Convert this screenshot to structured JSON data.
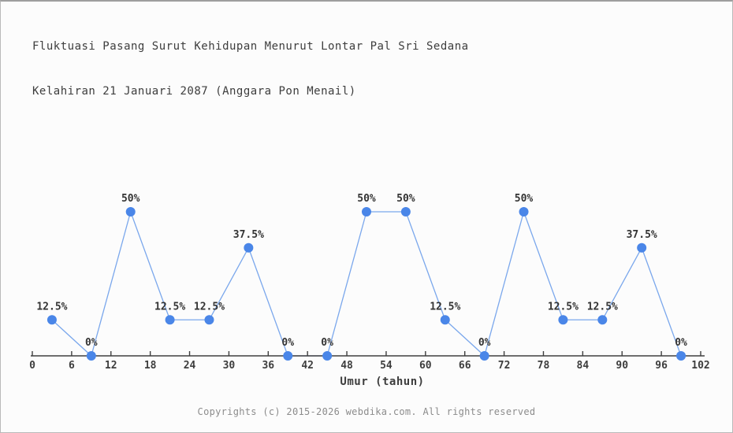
{
  "window": {
    "background": "#fcfcfc",
    "border_color": "#b0b0b0"
  },
  "title": {
    "line1": "Fluktuasi Pasang Surut Kehidupan Menurut Lontar Pal Sri Sedana",
    "line2": "Kelahiran 21 Januari 2087 (Anggara Pon Menail)"
  },
  "footer": {
    "text": "Copyrights (c) 2015-2026 webdika.com. All rights reserved"
  },
  "chart_data": {
    "type": "line",
    "title": "Fluktuasi Pasang Surut Kehidupan Menurut Lontar Pal Sri Sedana Kelahiran 21 Januari 2087 (Anggara Pon Menail)",
    "xlabel": "Umur (tahun)",
    "ylabel": "",
    "x": [
      3,
      9,
      15,
      21,
      27,
      33,
      39,
      45,
      51,
      57,
      63,
      69,
      75,
      81,
      87,
      93,
      99
    ],
    "values": [
      12.5,
      0,
      50,
      12.5,
      12.5,
      37.5,
      0,
      0,
      50,
      50,
      12.5,
      0,
      50,
      12.5,
      12.5,
      37.5,
      0
    ],
    "point_labels": [
      "12.5%",
      "0%",
      "50%",
      "12.5%",
      "12.5%",
      "37.5%",
      "0%",
      "0%",
      "50%",
      "50%",
      "12.5%",
      "0%",
      "50%",
      "12.5%",
      "12.5%",
      "37.5%",
      "0%"
    ],
    "x_ticks": [
      0,
      6,
      12,
      18,
      24,
      30,
      36,
      42,
      48,
      54,
      60,
      66,
      72,
      78,
      84,
      90,
      96,
      102
    ],
    "xlim": [
      0,
      102
    ],
    "ylim": [
      0,
      100
    ],
    "grid": false,
    "legend_position": "none",
    "y_axis_shown": false,
    "colors": {
      "marker": "#4a86e8",
      "line": "#7aa7ec",
      "axis": "#3f3f3f",
      "tick_label": "#3d3d3d",
      "data_label": "#333333",
      "title": "#3d3d3d",
      "footer": "#8c8c8c"
    }
  }
}
